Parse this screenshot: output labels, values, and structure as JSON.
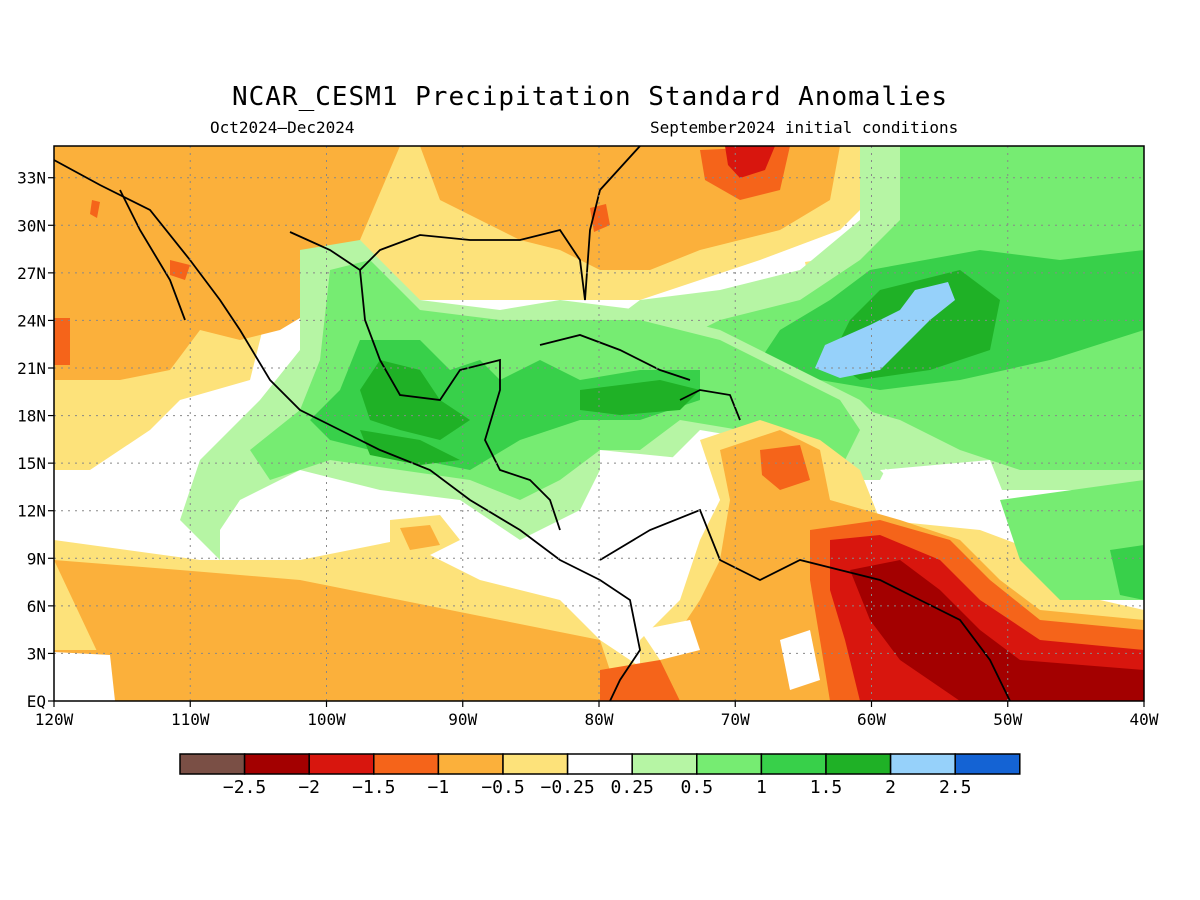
{
  "title": "NCAR_CESM1 Precipitation Standard Anomalies",
  "period": "Oct2024–Dec2024",
  "init": "September2024 initial conditions",
  "map": {
    "lon_range": [
      -120,
      -40
    ],
    "lat_range": [
      0,
      35
    ],
    "lat_ticks": [
      "33N",
      "30N",
      "27N",
      "24N",
      "21N",
      "18N",
      "15N",
      "12N",
      "9N",
      "6N",
      "3N",
      "EQ"
    ],
    "lat_values": [
      33,
      30,
      27,
      24,
      21,
      18,
      15,
      12,
      9,
      6,
      3,
      0
    ],
    "lon_ticks": [
      "120W",
      "110W",
      "100W",
      "90W",
      "80W",
      "70W",
      "60W",
      "50W",
      "40W"
    ],
    "lon_values": [
      -120,
      -110,
      -100,
      -90,
      -80,
      -70,
      -60,
      -50,
      -40
    ],
    "grid": "dotted"
  },
  "legend": {
    "labels": [
      "−2.5",
      "−2",
      "−1.5",
      "−1",
      "−0.5",
      "−0.25",
      "0.25",
      "0.5",
      "1",
      "1.5",
      "2",
      "2.5"
    ],
    "colors": [
      "#7a4f45",
      "#a30000",
      "#d8160e",
      "#f5641a",
      "#fbb03b",
      "#fde27a",
      "#ffffff",
      "#b6f5a4",
      "#76ec72",
      "#38d04a",
      "#1fb126",
      "#96d1fa",
      "#1463d4"
    ]
  }
}
